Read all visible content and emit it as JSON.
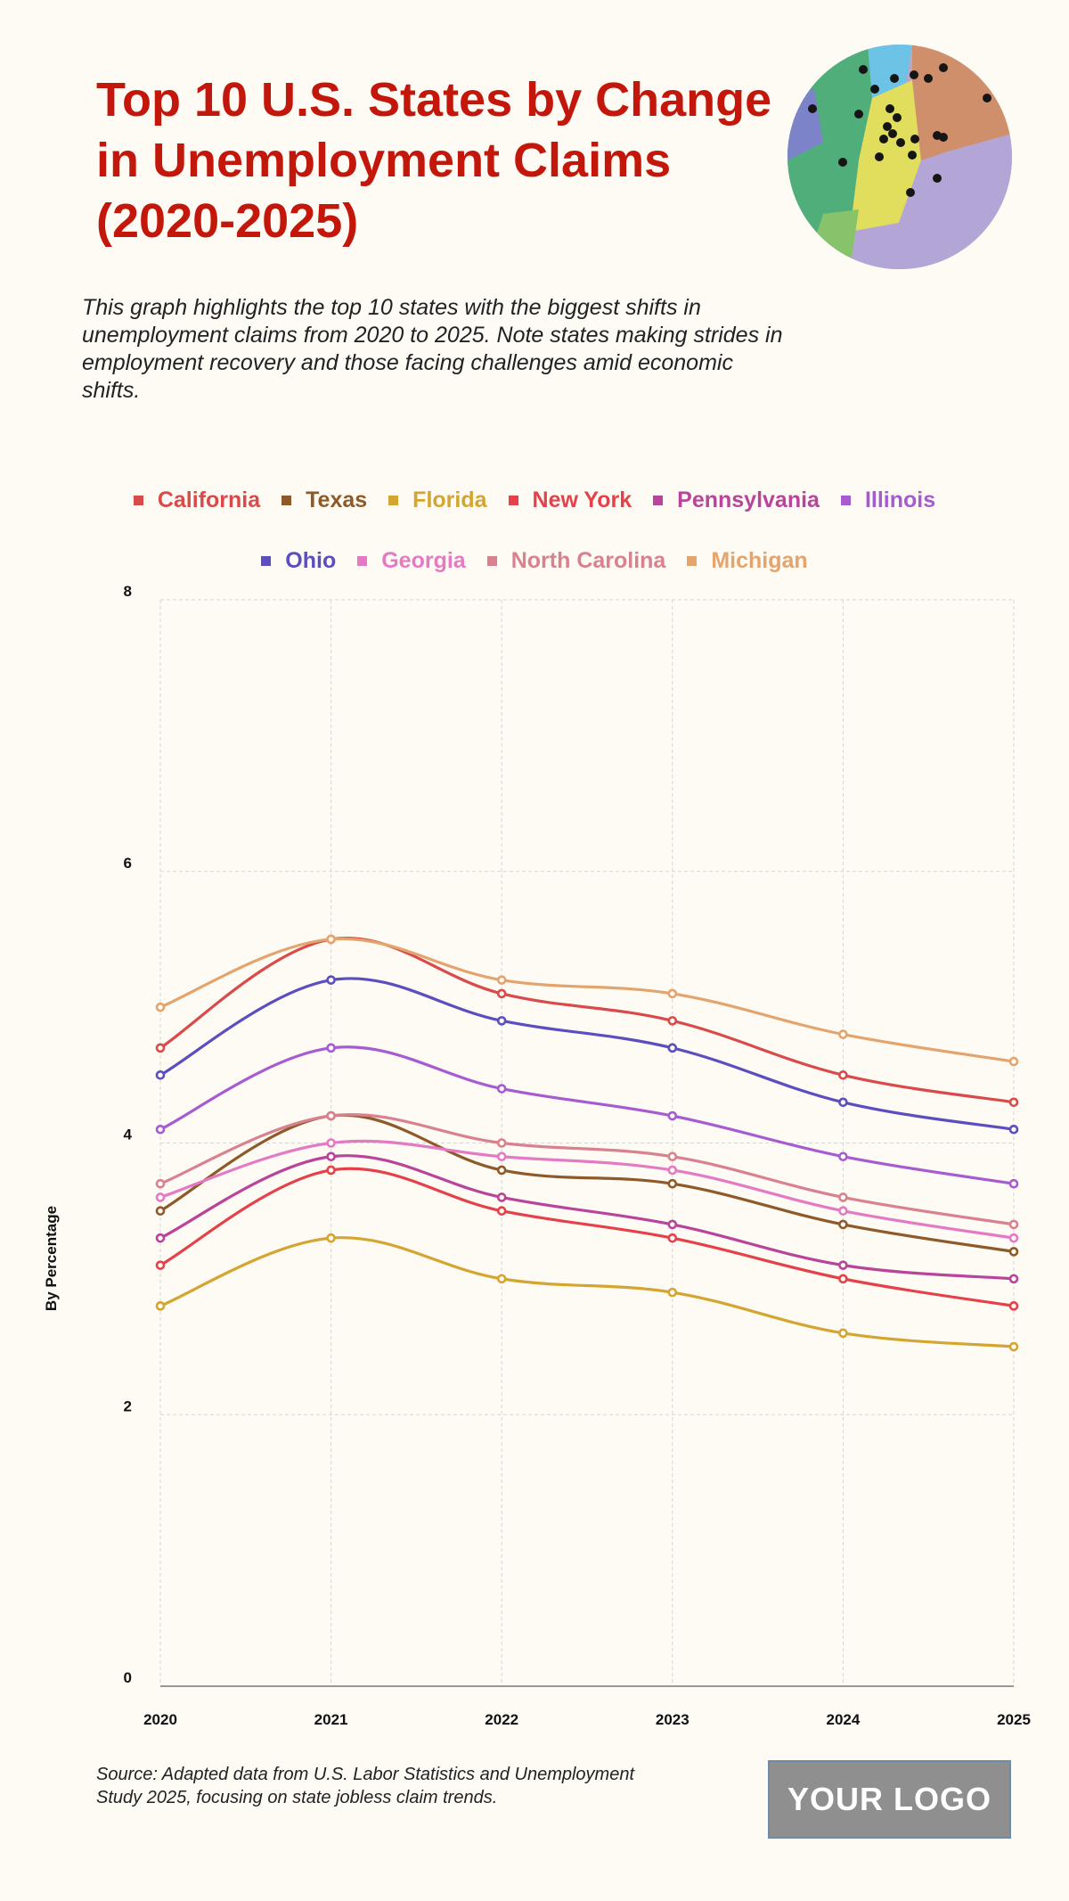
{
  "header": {
    "title": "Top 10 U.S. States by Change in Unemployment Claims (2020-2025)",
    "subtitle": "This graph highlights the top 10 states with the biggest shifts in unemployment claims from 2020 to 2025. Note states making strides in employment recovery and those facing challenges amid economic shifts."
  },
  "footer": {
    "source": "Source: Adapted data from U.S. Labor Statistics and Unemployment Study 2025, focusing on state jobless claim trends.",
    "logo_text": "YOUR LOGO"
  },
  "chart_data": {
    "type": "line",
    "title": "Top 10 U.S. States by Change in Unemployment Claims (2020-2025)",
    "xlabel": "",
    "ylabel": "By Percentage",
    "x": [
      "2020",
      "2021",
      "2022",
      "2023",
      "2024",
      "2025"
    ],
    "ylim": [
      0,
      8
    ],
    "yticks": [
      0,
      2,
      4,
      6,
      8
    ],
    "grid": true,
    "legend_position": "top",
    "series": [
      {
        "name": "California",
        "color": "#d94b4b",
        "values": [
          4.7,
          5.5,
          5.1,
          4.9,
          4.5,
          4.3
        ]
      },
      {
        "name": "Texas",
        "color": "#8f5a2a",
        "values": [
          3.5,
          4.2,
          3.8,
          3.7,
          3.4,
          3.2
        ]
      },
      {
        "name": "Florida",
        "color": "#d4a531",
        "values": [
          2.8,
          3.3,
          3.0,
          2.9,
          2.6,
          2.5
        ]
      },
      {
        "name": "New York",
        "color": "#e5414a",
        "values": [
          3.1,
          3.8,
          3.5,
          3.3,
          3.0,
          2.8
        ]
      },
      {
        "name": "Pennsylvania",
        "color": "#b8449b",
        "values": [
          3.3,
          3.9,
          3.6,
          3.4,
          3.1,
          3.0
        ]
      },
      {
        "name": "Illinois",
        "color": "#a65cd0",
        "values": [
          4.1,
          4.7,
          4.4,
          4.2,
          3.9,
          3.7
        ]
      },
      {
        "name": "Ohio",
        "color": "#5b4ebf",
        "values": [
          4.5,
          5.2,
          4.9,
          4.7,
          4.3,
          4.1
        ]
      },
      {
        "name": "Georgia",
        "color": "#e57ac4",
        "values": [
          3.6,
          4.0,
          3.9,
          3.8,
          3.5,
          3.3
        ]
      },
      {
        "name": "North Carolina",
        "color": "#d9818f",
        "values": [
          3.7,
          4.2,
          4.0,
          3.9,
          3.6,
          3.4
        ]
      },
      {
        "name": "Michigan",
        "color": "#e3a46e",
        "values": [
          5.0,
          5.5,
          5.2,
          5.1,
          4.8,
          4.6
        ]
      }
    ]
  }
}
